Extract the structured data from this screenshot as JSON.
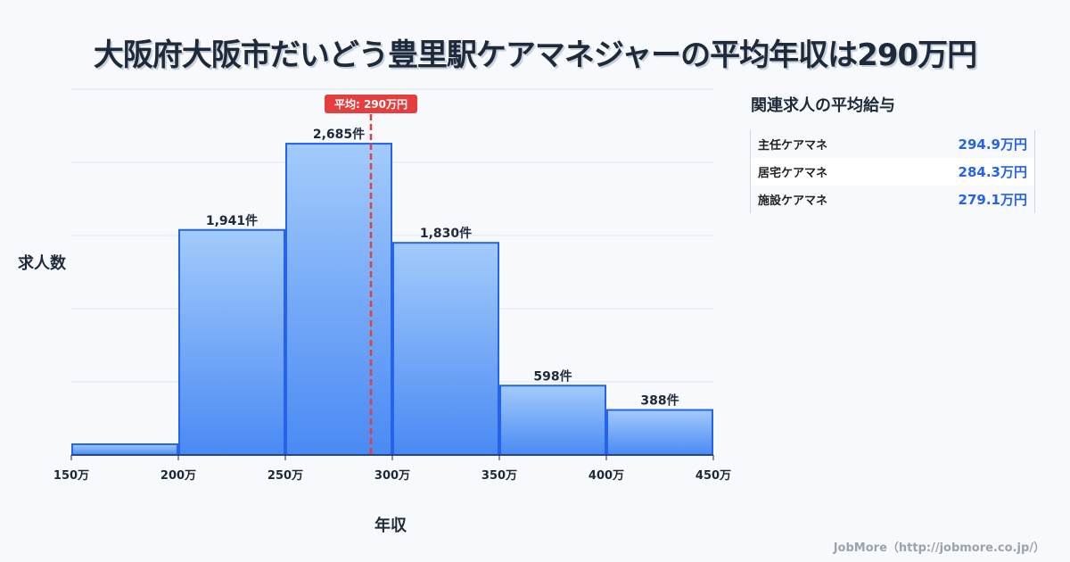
{
  "title": "大阪府大阪市だいどう豊里駅ケアマネジャーの平均年収は290万円",
  "chart_data": {
    "type": "bar",
    "xlabel": "年収",
    "ylabel": "求人数",
    "x_ticks": [
      150,
      200,
      250,
      300,
      350,
      400,
      450
    ],
    "x_tick_labels": [
      "150万",
      "200万",
      "250万",
      "300万",
      "350万",
      "400万",
      "450万"
    ],
    "bins": [
      [
        150,
        200
      ],
      [
        200,
        250
      ],
      [
        250,
        300
      ],
      [
        300,
        350
      ],
      [
        350,
        400
      ],
      [
        400,
        450
      ]
    ],
    "values": [
      92,
      1941,
      2685,
      1830,
      598,
      388
    ],
    "data_labels": [
      "",
      "1,941件",
      "2,685件",
      "1,830件",
      "598件",
      "388件"
    ],
    "ylim": [
      0,
      3155
    ],
    "grid": true,
    "average": {
      "value": 290,
      "label": "平均: 290万円"
    },
    "colors": {
      "bar_top": "#a3cbfb",
      "bar_bottom": "#4a8af4",
      "bar_edge": "#2563eb",
      "avg": "#e53e3e"
    }
  },
  "side": {
    "title": "関連求人の平均給与",
    "rows": [
      {
        "name": "主任ケアマネ",
        "value": "294.9万円"
      },
      {
        "name": "居宅ケアマネ",
        "value": "284.3万円"
      },
      {
        "name": "施設ケアマネ",
        "value": "279.1万円"
      }
    ]
  },
  "footer": "JobMore（http://jobmore.co.jp/）"
}
